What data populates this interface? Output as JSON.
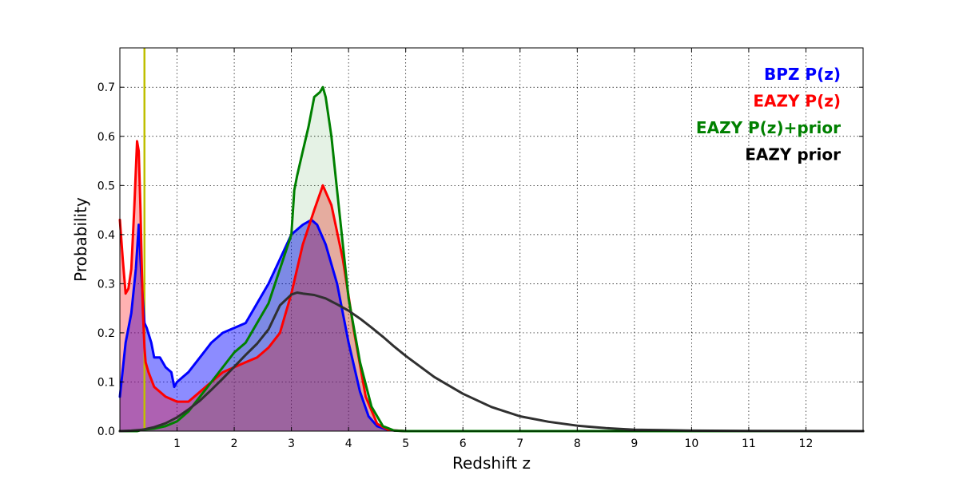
{
  "chart_data": {
    "type": "area",
    "title": "",
    "xlabel": "Redshift z",
    "ylabel": "Probability",
    "xlim": [
      0,
      13
    ],
    "ylim": [
      0,
      0.78
    ],
    "xticks": [
      1,
      2,
      3,
      4,
      5,
      6,
      7,
      8,
      9,
      10,
      11,
      12
    ],
    "xtick_labels": [
      "1",
      "2",
      "3",
      "4",
      "5",
      "6",
      "7",
      "8",
      "9",
      "10",
      "11",
      "12"
    ],
    "yticks": [
      0,
      0.1,
      0.2,
      0.3,
      0.4,
      0.5,
      0.6,
      0.7
    ],
    "ytick_labels": [
      "0.0",
      "0.1",
      "0.2",
      "0.3",
      "0.4",
      "0.5",
      "0.6",
      "0.7"
    ],
    "grid": true,
    "legend_position": "top-right",
    "vline": {
      "x": 0.43,
      "color": "#bfbf00"
    },
    "series": [
      {
        "name": "BPZ P(z)",
        "color": "#0000ff",
        "fill": "#0000ff",
        "fill_opacity": 0.45,
        "x": [
          0,
          0.1,
          0.2,
          0.28,
          0.33,
          0.36,
          0.4,
          0.43,
          0.47,
          0.55,
          0.6,
          0.7,
          0.8,
          0.9,
          0.95,
          1.0,
          1.1,
          1.2,
          1.4,
          1.6,
          1.8,
          2.0,
          2.2,
          2.4,
          2.6,
          2.8,
          3.0,
          3.2,
          3.35,
          3.45,
          3.6,
          3.8,
          4.0,
          4.2,
          4.35,
          4.5,
          4.7,
          5.0,
          13
        ],
        "values": [
          0.07,
          0.18,
          0.24,
          0.33,
          0.42,
          0.35,
          0.27,
          0.22,
          0.21,
          0.18,
          0.15,
          0.15,
          0.13,
          0.12,
          0.09,
          0.1,
          0.11,
          0.12,
          0.15,
          0.18,
          0.2,
          0.21,
          0.22,
          0.26,
          0.3,
          0.35,
          0.4,
          0.42,
          0.43,
          0.42,
          0.38,
          0.3,
          0.18,
          0.08,
          0.03,
          0.01,
          0.002,
          0,
          0
        ]
      },
      {
        "name": "EAZY P(z)",
        "color": "#ff0000",
        "fill": "#ff0000",
        "fill_opacity": 0.3,
        "x": [
          0,
          0.05,
          0.1,
          0.15,
          0.2,
          0.25,
          0.3,
          0.33,
          0.36,
          0.4,
          0.43,
          0.45,
          0.5,
          0.6,
          0.8,
          1.0,
          1.2,
          1.4,
          1.6,
          1.8,
          2.0,
          2.2,
          2.4,
          2.6,
          2.8,
          3.0,
          3.2,
          3.4,
          3.55,
          3.7,
          3.9,
          4.1,
          4.3,
          4.5,
          4.7,
          5.0,
          13
        ],
        "values": [
          0.43,
          0.35,
          0.28,
          0.29,
          0.33,
          0.45,
          0.59,
          0.57,
          0.45,
          0.25,
          0.17,
          0.14,
          0.12,
          0.09,
          0.07,
          0.06,
          0.06,
          0.08,
          0.1,
          0.12,
          0.13,
          0.14,
          0.15,
          0.17,
          0.2,
          0.28,
          0.38,
          0.45,
          0.5,
          0.46,
          0.35,
          0.2,
          0.07,
          0.015,
          0.002,
          0,
          0
        ]
      },
      {
        "name": "EAZY P(z)+prior",
        "color": "#008000",
        "fill": "#008000",
        "fill_opacity": 0.1,
        "x": [
          0,
          0.3,
          0.4,
          0.6,
          0.8,
          1.0,
          1.2,
          1.4,
          1.6,
          1.8,
          2.0,
          2.2,
          2.4,
          2.6,
          2.8,
          3.0,
          3.05,
          3.1,
          3.2,
          3.3,
          3.4,
          3.5,
          3.55,
          3.6,
          3.7,
          3.8,
          3.9,
          4.0,
          4.2,
          4.4,
          4.6,
          4.8,
          5.0,
          13
        ],
        "values": [
          0,
          0,
          0.003,
          0.005,
          0.01,
          0.02,
          0.04,
          0.07,
          0.1,
          0.13,
          0.16,
          0.18,
          0.22,
          0.26,
          0.33,
          0.4,
          0.49,
          0.52,
          0.57,
          0.62,
          0.68,
          0.69,
          0.7,
          0.68,
          0.6,
          0.49,
          0.38,
          0.27,
          0.14,
          0.05,
          0.01,
          0.001,
          0,
          0
        ]
      },
      {
        "name": "EAZY prior",
        "color": "#303030",
        "fill": "none",
        "fill_opacity": 0,
        "x": [
          0,
          0.2,
          0.4,
          0.6,
          0.8,
          1.0,
          1.2,
          1.4,
          1.6,
          1.8,
          2.0,
          2.2,
          2.4,
          2.6,
          2.8,
          3.0,
          3.1,
          3.2,
          3.4,
          3.6,
          3.8,
          4.0,
          4.2,
          4.4,
          4.6,
          4.8,
          5.0,
          5.5,
          6.0,
          6.5,
          7.0,
          7.5,
          8.0,
          8.5,
          9.0,
          9.5,
          10.0,
          11.0,
          12.0,
          13.0
        ],
        "values": [
          0,
          0.001,
          0.003,
          0.008,
          0.016,
          0.028,
          0.044,
          0.062,
          0.084,
          0.107,
          0.131,
          0.155,
          0.178,
          0.207,
          0.256,
          0.278,
          0.282,
          0.28,
          0.277,
          0.27,
          0.258,
          0.245,
          0.229,
          0.211,
          0.192,
          0.172,
          0.153,
          0.11,
          0.076,
          0.049,
          0.03,
          0.019,
          0.011,
          0.006,
          0.003,
          0.002,
          0.001,
          0.0003,
          0.0001,
          0
        ]
      }
    ]
  }
}
